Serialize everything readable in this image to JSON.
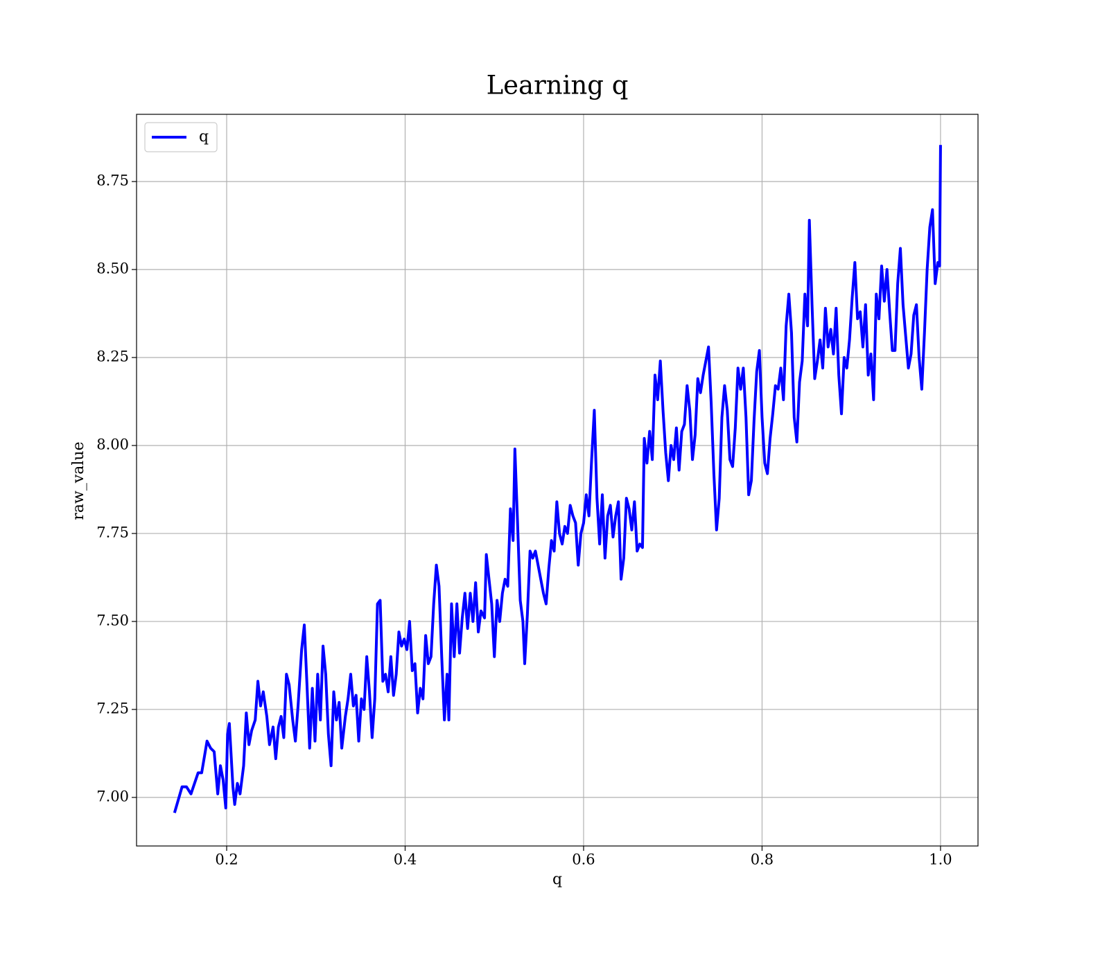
{
  "chart_data": {
    "type": "line",
    "title": "Learning q",
    "x_label": "q",
    "y_label": "raw_value",
    "grid": true,
    "legend": "upper left",
    "xlim": [
      0.099,
      1.042
    ],
    "ylim": [
      6.862,
      8.941
    ],
    "xticks": [
      0.2,
      0.4,
      0.6,
      0.8,
      {
        "value": 1.0,
        "label": "1.0"
      }
    ],
    "yticks": [
      {
        "value": 7.0,
        "label": "7.00"
      },
      {
        "value": 7.25,
        "label": "7.25"
      },
      {
        "value": 7.5,
        "label": "7.50"
      },
      {
        "value": 7.75,
        "label": "7.75"
      },
      {
        "value": 8.0,
        "label": "8.00"
      },
      {
        "value": 8.25,
        "label": "8.25"
      },
      {
        "value": 8.5,
        "label": "8.50"
      },
      {
        "value": 8.75,
        "label": "8.75"
      }
    ],
    "x": [
      0.142,
      0.15,
      0.155,
      0.16,
      0.168,
      0.172,
      0.178,
      0.182,
      0.186,
      0.19,
      0.193,
      0.196,
      0.199,
      0.201,
      0.203,
      0.207,
      0.209,
      0.212,
      0.215,
      0.219,
      0.222,
      0.225,
      0.228,
      0.232,
      0.235,
      0.238,
      0.241,
      0.245,
      0.248,
      0.252,
      0.255,
      0.258,
      0.261,
      0.264,
      0.267,
      0.27,
      0.274,
      0.277,
      0.28,
      0.284,
      0.287,
      0.29,
      0.293,
      0.296,
      0.299,
      0.302,
      0.305,
      0.308,
      0.311,
      0.314,
      0.317,
      0.32,
      0.323,
      0.326,
      0.329,
      0.333,
      0.336,
      0.339,
      0.342,
      0.345,
      0.348,
      0.351,
      0.354,
      0.357,
      0.36,
      0.363,
      0.366,
      0.369,
      0.372,
      0.375,
      0.378,
      0.381,
      0.384,
      0.387,
      0.39,
      0.393,
      0.396,
      0.399,
      0.402,
      0.405,
      0.408,
      0.411,
      0.414,
      0.417,
      0.42,
      0.423,
      0.426,
      0.429,
      0.432,
      0.435,
      0.438,
      0.441,
      0.444,
      0.447,
      0.449,
      0.452,
      0.455,
      0.458,
      0.461,
      0.464,
      0.467,
      0.47,
      0.473,
      0.476,
      0.479,
      0.482,
      0.485,
      0.489,
      0.491,
      0.494,
      0.497,
      0.5,
      0.503,
      0.506,
      0.509,
      0.512,
      0.515,
      0.518,
      0.521,
      0.523,
      0.526,
      0.529,
      0.532,
      0.534,
      0.537,
      0.54,
      0.543,
      0.546,
      0.549,
      0.552,
      0.555,
      0.558,
      0.561,
      0.564,
      0.567,
      0.57,
      0.573,
      0.576,
      0.579,
      0.582,
      0.585,
      0.588,
      0.591,
      0.594,
      0.597,
      0.6,
      0.603,
      0.606,
      0.609,
      0.612,
      0.615,
      0.618,
      0.621,
      0.624,
      0.627,
      0.63,
      0.633,
      0.636,
      0.639,
      0.642,
      0.645,
      0.648,
      0.651,
      0.654,
      0.657,
      0.66,
      0.663,
      0.666,
      0.668,
      0.671,
      0.674,
      0.677,
      0.68,
      0.683,
      0.686,
      0.689,
      0.692,
      0.695,
      0.698,
      0.701,
      0.704,
      0.707,
      0.71,
      0.713,
      0.716,
      0.719,
      0.722,
      0.725,
      0.728,
      0.731,
      0.734,
      0.737,
      0.74,
      0.743,
      0.746,
      0.749,
      0.752,
      0.755,
      0.758,
      0.761,
      0.764,
      0.767,
      0.77,
      0.773,
      0.776,
      0.779,
      0.782,
      0.785,
      0.788,
      0.791,
      0.794,
      0.797,
      0.8,
      0.803,
      0.806,
      0.809,
      0.812,
      0.815,
      0.818,
      0.821,
      0.824,
      0.827,
      0.83,
      0.833,
      0.836,
      0.839,
      0.842,
      0.845,
      0.848,
      0.851,
      0.853,
      0.856,
      0.859,
      0.862,
      0.865,
      0.868,
      0.871,
      0.874,
      0.877,
      0.88,
      0.883,
      0.886,
      0.889,
      0.892,
      0.895,
      0.898,
      0.901,
      0.904,
      0.907,
      0.91,
      0.913,
      0.916,
      0.919,
      0.922,
      0.925,
      0.928,
      0.931,
      0.934,
      0.937,
      0.94,
      0.943,
      0.946,
      0.949,
      0.952,
      0.955,
      0.958,
      0.961,
      0.964,
      0.967,
      0.97,
      0.973,
      0.976,
      0.979,
      0.982,
      0.985,
      0.988,
      0.991,
      0.994,
      0.997,
      0.999,
      1.0
    ],
    "series": [
      {
        "name": "q",
        "color": "#0000ff",
        "values": [
          6.96,
          7.03,
          7.03,
          7.01,
          7.07,
          7.07,
          7.16,
          7.14,
          7.13,
          7.01,
          7.09,
          7.05,
          6.97,
          7.18,
          7.21,
          7.03,
          6.98,
          7.04,
          7.01,
          7.09,
          7.24,
          7.15,
          7.19,
          7.22,
          7.33,
          7.26,
          7.3,
          7.23,
          7.15,
          7.2,
          7.11,
          7.2,
          7.23,
          7.17,
          7.35,
          7.32,
          7.22,
          7.16,
          7.26,
          7.42,
          7.49,
          7.32,
          7.14,
          7.31,
          7.16,
          7.35,
          7.22,
          7.43,
          7.35,
          7.18,
          7.09,
          7.3,
          7.22,
          7.27,
          7.14,
          7.23,
          7.28,
          7.35,
          7.26,
          7.29,
          7.16,
          7.28,
          7.25,
          7.4,
          7.3,
          7.17,
          7.28,
          7.55,
          7.56,
          7.33,
          7.35,
          7.3,
          7.4,
          7.29,
          7.35,
          7.47,
          7.43,
          7.45,
          7.42,
          7.5,
          7.36,
          7.38,
          7.24,
          7.31,
          7.28,
          7.46,
          7.38,
          7.4,
          7.55,
          7.66,
          7.6,
          7.4,
          7.22,
          7.35,
          7.22,
          7.55,
          7.4,
          7.55,
          7.41,
          7.51,
          7.58,
          7.48,
          7.58,
          7.5,
          7.61,
          7.47,
          7.53,
          7.51,
          7.69,
          7.62,
          7.55,
          7.4,
          7.56,
          7.5,
          7.58,
          7.62,
          7.6,
          7.82,
          7.73,
          7.99,
          7.78,
          7.56,
          7.5,
          7.38,
          7.52,
          7.7,
          7.68,
          7.7,
          7.66,
          7.62,
          7.58,
          7.55,
          7.65,
          7.73,
          7.7,
          7.84,
          7.75,
          7.72,
          7.77,
          7.75,
          7.83,
          7.8,
          7.78,
          7.66,
          7.75,
          7.78,
          7.86,
          7.8,
          7.96,
          8.1,
          7.85,
          7.72,
          7.86,
          7.68,
          7.8,
          7.83,
          7.74,
          7.8,
          7.84,
          7.62,
          7.68,
          7.85,
          7.82,
          7.76,
          7.84,
          7.7,
          7.72,
          7.71,
          8.02,
          7.95,
          8.04,
          7.96,
          8.2,
          8.13,
          8.24,
          8.1,
          7.98,
          7.9,
          8.0,
          7.96,
          8.05,
          7.93,
          8.04,
          8.06,
          8.17,
          8.1,
          7.96,
          8.03,
          8.19,
          8.15,
          8.2,
          8.24,
          8.28,
          8.12,
          7.92,
          7.76,
          7.85,
          8.08,
          8.17,
          8.1,
          7.96,
          7.94,
          8.05,
          8.22,
          8.16,
          8.22,
          8.08,
          7.86,
          7.9,
          8.07,
          8.21,
          8.27,
          8.08,
          7.95,
          7.92,
          8.02,
          8.09,
          8.17,
          8.16,
          8.22,
          8.13,
          8.34,
          8.43,
          8.32,
          8.08,
          8.01,
          8.18,
          8.24,
          8.43,
          8.34,
          8.64,
          8.4,
          8.19,
          8.24,
          8.3,
          8.22,
          8.39,
          8.28,
          8.33,
          8.26,
          8.39,
          8.2,
          8.09,
          8.25,
          8.22,
          8.3,
          8.42,
          8.52,
          8.36,
          8.38,
          8.28,
          8.4,
          8.2,
          8.26,
          8.13,
          8.43,
          8.36,
          8.51,
          8.41,
          8.5,
          8.38,
          8.27,
          8.27,
          8.46,
          8.56,
          8.4,
          8.31,
          8.22,
          8.26,
          8.37,
          8.4,
          8.25,
          8.16,
          8.32,
          8.5,
          8.62,
          8.67,
          8.46,
          8.52,
          8.51,
          8.85
        ]
      }
    ]
  }
}
